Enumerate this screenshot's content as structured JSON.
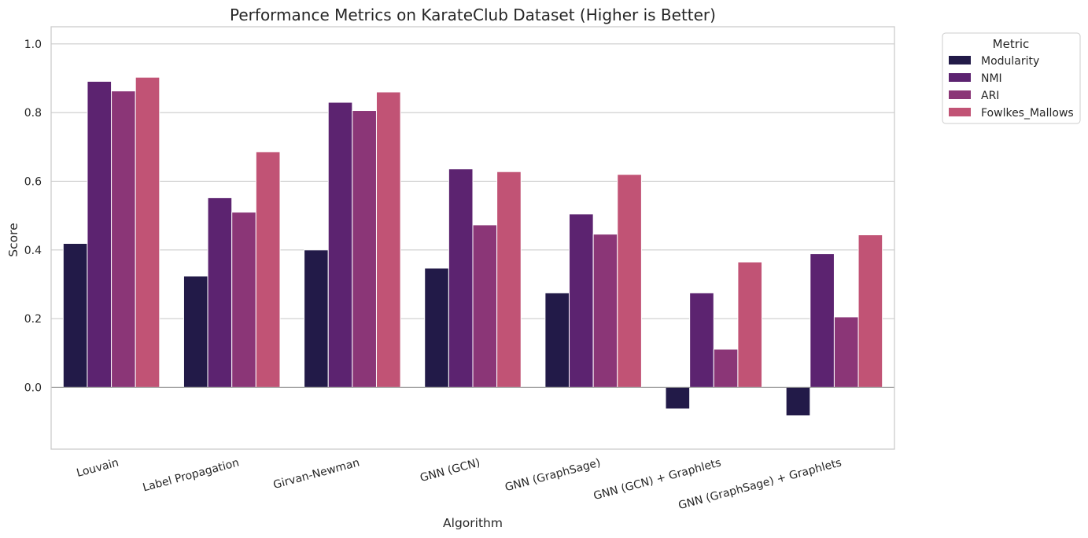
{
  "chart_data": {
    "type": "bar",
    "title": "Performance Metrics on KarateClub Dataset (Higher is Better)",
    "xlabel": "Algorithm",
    "ylabel": "Score",
    "ylim": [
      -0.18,
      1.05
    ],
    "yticks": [
      0.0,
      0.2,
      0.4,
      0.6,
      0.8,
      1.0
    ],
    "ytick_labels": [
      "0.0",
      "0.2",
      "0.4",
      "0.6",
      "0.8",
      "1.0"
    ],
    "grid": "horizontal",
    "legend": {
      "title": "Metric",
      "placement": "outside-top-right"
    },
    "categories": [
      "Louvain",
      "Label Propagation",
      "Girvan-Newman",
      "GNN (GCN)",
      "GNN (GraphSage)",
      "GNN (GCN) + Graphlets",
      "GNN (GraphSage) + Graphlets"
    ],
    "series": [
      {
        "name": "Modularity",
        "color": "#221a48",
        "values": [
          0.419,
          0.324,
          0.4,
          0.347,
          0.275,
          -0.063,
          -0.083
        ]
      },
      {
        "name": "NMI",
        "color": "#5c2370",
        "values": [
          0.891,
          0.552,
          0.83,
          0.636,
          0.505,
          0.275,
          0.389
        ]
      },
      {
        "name": "ARI",
        "color": "#8b3677",
        "values": [
          0.863,
          0.51,
          0.806,
          0.473,
          0.446,
          0.111,
          0.205
        ]
      },
      {
        "name": "Fowlkes_Mallows",
        "color": "#c15375",
        "values": [
          0.903,
          0.686,
          0.86,
          0.628,
          0.62,
          0.365,
          0.444
        ]
      }
    ]
  }
}
